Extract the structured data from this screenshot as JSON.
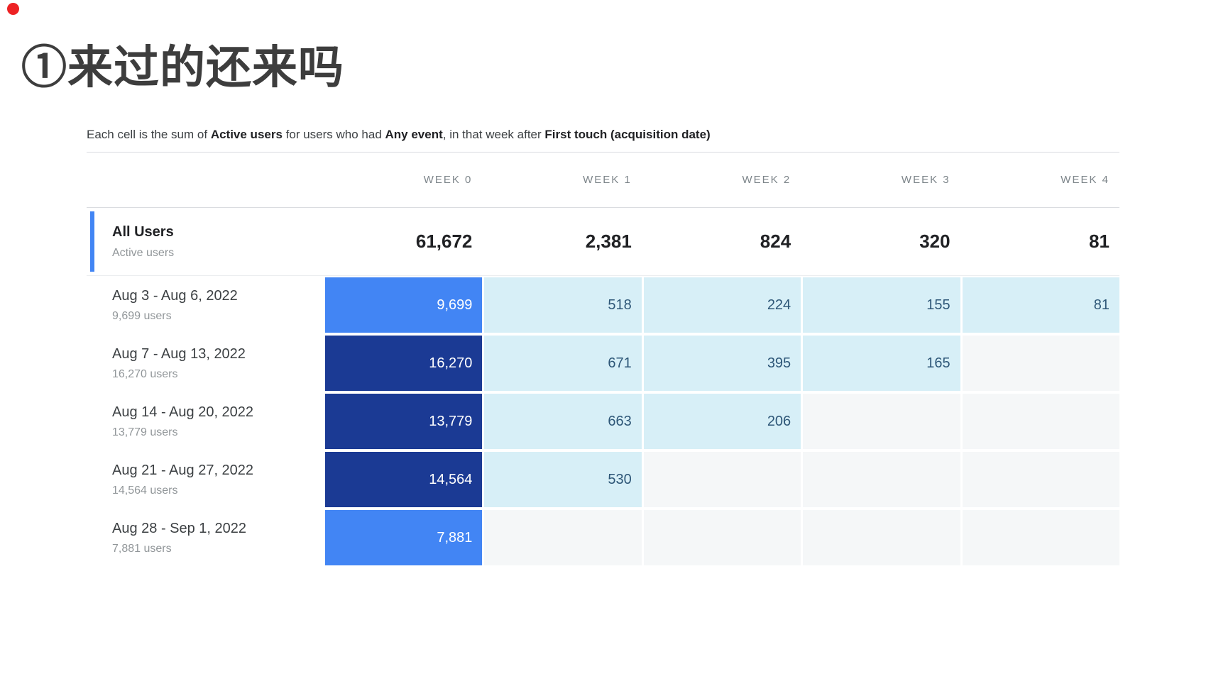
{
  "page": {
    "title": "①来过的还来吗"
  },
  "description": {
    "part1": "Each cell is the sum of ",
    "bold1": "Active users",
    "part2": " for users who had ",
    "bold2": "Any event",
    "part3": ", in that week after ",
    "bold3": "First touch (acquisition date)"
  },
  "cohort": {
    "week_headers": [
      "WEEK 0",
      "WEEK 1",
      "WEEK 2",
      "WEEK 3",
      "WEEK 4"
    ],
    "summary": {
      "label": "All Users",
      "sublabel": "Active users",
      "values": [
        "61,672",
        "2,381",
        "824",
        "320",
        "81"
      ]
    },
    "rows": [
      {
        "label": "Aug 3 - Aug 6, 2022",
        "sublabel": "9,699 users",
        "cells": [
          {
            "text": "9,699",
            "cls": "blue"
          },
          {
            "text": "518",
            "cls": "cyan"
          },
          {
            "text": "224",
            "cls": "cyan"
          },
          {
            "text": "155",
            "cls": "cyan"
          },
          {
            "text": "81",
            "cls": "cyan"
          }
        ]
      },
      {
        "label": "Aug 7 - Aug 13, 2022",
        "sublabel": "16,270 users",
        "cells": [
          {
            "text": "16,270",
            "cls": "dark"
          },
          {
            "text": "671",
            "cls": "cyan"
          },
          {
            "text": "395",
            "cls": "cyan"
          },
          {
            "text": "165",
            "cls": "cyan"
          },
          {
            "text": "",
            "cls": "empty"
          }
        ]
      },
      {
        "label": "Aug 14 - Aug 20, 2022",
        "sublabel": "13,779 users",
        "cells": [
          {
            "text": "13,779",
            "cls": "dark"
          },
          {
            "text": "663",
            "cls": "cyan"
          },
          {
            "text": "206",
            "cls": "cyan"
          },
          {
            "text": "",
            "cls": "empty"
          },
          {
            "text": "",
            "cls": "empty"
          }
        ]
      },
      {
        "label": "Aug 21 - Aug 27, 2022",
        "sublabel": "14,564 users",
        "cells": [
          {
            "text": "14,564",
            "cls": "dark"
          },
          {
            "text": "530",
            "cls": "cyan"
          },
          {
            "text": "",
            "cls": "empty"
          },
          {
            "text": "",
            "cls": "empty"
          },
          {
            "text": "",
            "cls": "empty"
          }
        ]
      },
      {
        "label": "Aug 28 - Sep 1, 2022",
        "sublabel": "7,881 users",
        "cells": [
          {
            "text": "7,881",
            "cls": "blue"
          },
          {
            "text": "",
            "cls": "empty"
          },
          {
            "text": "",
            "cls": "empty"
          },
          {
            "text": "",
            "cls": "empty"
          },
          {
            "text": "",
            "cls": "empty"
          }
        ]
      }
    ]
  },
  "colors": {
    "accent_blue": "#4285f4",
    "dark_blue": "#1b3a94",
    "light_cyan": "#d7eff7",
    "cyan_cell_text": "#2d5677",
    "empty_cell": "#f5f7f8",
    "red_dot": "#ed2224"
  },
  "chart_data": {
    "type": "heatmap",
    "title": "①来过的还来吗",
    "subtitle": "Each cell is the sum of Active users for users who had Any event, in that week after First touch (acquisition date)",
    "columns": [
      "WEEK 0",
      "WEEK 1",
      "WEEK 2",
      "WEEK 3",
      "WEEK 4"
    ],
    "all_users": {
      "label": "All Users",
      "metric": "Active users",
      "values": [
        61672,
        2381,
        824,
        320,
        81
      ]
    },
    "rows": [
      {
        "label": "Aug 3 - Aug 6, 2022",
        "cohort_size": 9699,
        "values": [
          9699,
          518,
          224,
          155,
          81
        ]
      },
      {
        "label": "Aug 7 - Aug 13, 2022",
        "cohort_size": 16270,
        "values": [
          16270,
          671,
          395,
          165,
          null
        ]
      },
      {
        "label": "Aug 14 - Aug 20, 2022",
        "cohort_size": 13779,
        "values": [
          13779,
          663,
          206,
          null,
          null
        ]
      },
      {
        "label": "Aug 21 - Aug 27, 2022",
        "cohort_size": 14564,
        "values": [
          14564,
          530,
          null,
          null,
          null
        ]
      },
      {
        "label": "Aug 28 - Sep 1, 2022",
        "cohort_size": 7881,
        "values": [
          7881,
          null,
          null,
          null,
          null
        ]
      }
    ],
    "legend_position": "none",
    "grid": false
  }
}
